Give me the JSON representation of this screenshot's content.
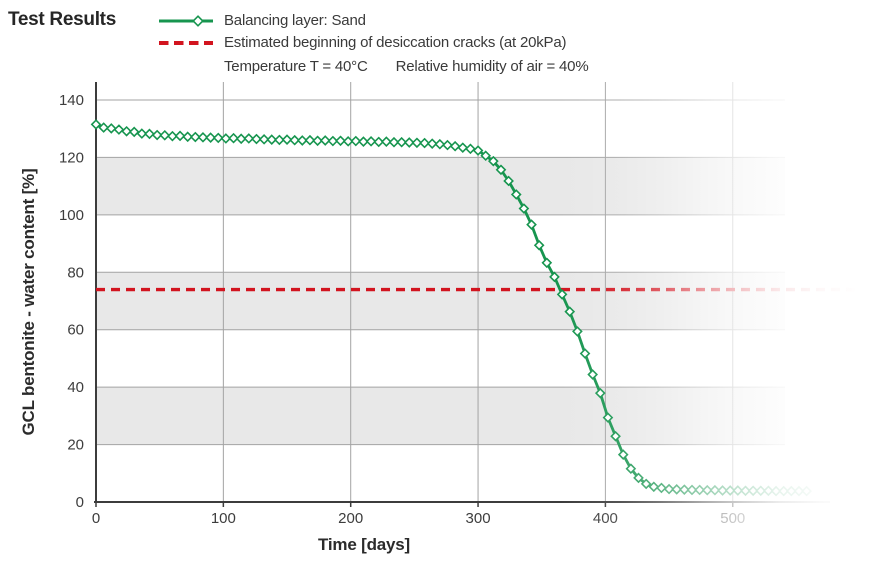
{
  "header": {
    "title": "Test Results",
    "conditions": [
      "Temperature T = 40°C",
      "Relative humidity of air = 40%"
    ]
  },
  "colors": {
    "accent_green": "#17954f",
    "accent_red": "#d2141f",
    "band_gray": "#e8e8e8",
    "grid_gray": "#a3a3a3",
    "axis_dark": "#3c3c3c",
    "tick_text": "#3d3d3d"
  },
  "chart_data": {
    "type": "line",
    "title": "Test Results",
    "xlabel": "Time [days]",
    "ylabel": "GCL bentonite - water content [%]",
    "xlim": [
      0,
      560
    ],
    "ylim": [
      0,
      140
    ],
    "xticks": [
      0,
      100,
      200,
      300,
      400,
      500
    ],
    "yticks": [
      0,
      20,
      40,
      60,
      80,
      100,
      120,
      140
    ],
    "grid": true,
    "shaded_bands": [
      [
        100,
        120
      ],
      [
        60,
        80
      ],
      [
        20,
        40
      ]
    ],
    "legend_position": "top-left",
    "right_fade": true,
    "series": [
      {
        "name": "Balancing layer: Sand",
        "type": "line",
        "marker": "diamond",
        "color": "#17954f",
        "x": [
          0,
          6,
          12,
          18,
          24,
          30,
          36,
          42,
          48,
          54,
          60,
          66,
          72,
          78,
          84,
          90,
          96,
          102,
          108,
          114,
          120,
          126,
          132,
          138,
          144,
          150,
          156,
          162,
          168,
          174,
          180,
          186,
          192,
          198,
          204,
          210,
          216,
          222,
          228,
          234,
          240,
          246,
          252,
          258,
          264,
          270,
          276,
          282,
          288,
          294,
          300,
          306,
          312,
          318,
          324,
          330,
          336,
          342,
          348,
          354,
          360,
          366,
          372,
          378,
          384,
          390,
          396,
          402,
          408,
          414,
          420,
          426,
          432,
          438,
          444,
          450,
          456,
          462,
          468,
          474,
          480,
          486,
          492,
          498,
          504,
          510,
          516,
          522,
          528,
          534,
          540,
          546,
          552,
          558
        ],
        "y": [
          131.5,
          130.4,
          130.1,
          129.7,
          129.1,
          128.9,
          128.3,
          128.2,
          127.8,
          127.7,
          127.4,
          127.5,
          127.2,
          127.1,
          127.0,
          126.9,
          126.8,
          126.6,
          126.7,
          126.5,
          126.6,
          126.4,
          126.3,
          126.2,
          126.1,
          126.2,
          126.0,
          125.9,
          126.0,
          125.8,
          125.9,
          125.7,
          125.8,
          125.6,
          125.7,
          125.5,
          125.6,
          125.4,
          125.5,
          125.3,
          125.3,
          125.2,
          125.1,
          125.0,
          124.8,
          124.6,
          124.3,
          123.9,
          123.4,
          123.0,
          122.4,
          120.6,
          118.7,
          115.7,
          111.8,
          107.1,
          102.2,
          96.6,
          89.4,
          83.3,
          78.4,
          72.3,
          66.3,
          59.4,
          51.7,
          44.4,
          37.9,
          29.4,
          22.9,
          16.5,
          11.6,
          8.4,
          6.3,
          5.3,
          4.9,
          4.5,
          4.4,
          4.3,
          4.2,
          4.2,
          4.1,
          4.1,
          4.0,
          4.0,
          4.0,
          3.9,
          3.9,
          3.9,
          3.9,
          3.8,
          3.8,
          3.8,
          3.8,
          3.8
        ]
      },
      {
        "name": "Estimated beginning of desiccation cracks (at 20kPa)",
        "type": "threshold-line",
        "style": "dashed",
        "color": "#d2141f",
        "value": 74
      }
    ]
  }
}
